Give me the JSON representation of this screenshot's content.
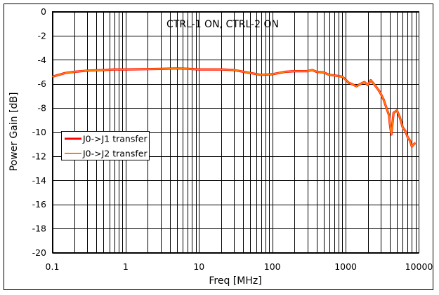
{
  "chart_data": {
    "type": "line",
    "title": "",
    "annotation": "CTRL-1 ON, CTRL-2 ON",
    "xlabel": "Freq [MHz]",
    "ylabel": "Power Gain [dB]",
    "xscale": "log",
    "xlim": [
      0.1,
      10000
    ],
    "ylim": [
      -20,
      0
    ],
    "x_ticks": [
      "0.1",
      "1",
      "10",
      "100",
      "1000",
      "10000"
    ],
    "y_ticks": [
      "0",
      "-2",
      "-4",
      "-6",
      "-8",
      "-10",
      "-12",
      "-14",
      "-16",
      "-18",
      "-20"
    ],
    "grid": true,
    "legend_position": "inside-left-middle",
    "series": [
      {
        "name": "J0->J1 transfer",
        "color": "#ff0000",
        "x": [
          0.1,
          0.15,
          0.2,
          0.3,
          0.5,
          0.7,
          1,
          2,
          3,
          5,
          7,
          10,
          20,
          30,
          50,
          70,
          100,
          150,
          200,
          300,
          350,
          400,
          500,
          600,
          700,
          800,
          900,
          1000,
          1100,
          1200,
          1400,
          1600,
          1800,
          2000,
          2200,
          2500,
          2800,
          3000,
          3300,
          3600,
          3900,
          4000,
          4200,
          4500,
          5000,
          5500,
          6000,
          6500,
          7000,
          7500,
          8000,
          8500,
          9000
        ],
        "y": [
          -5.4,
          -5.1,
          -5.0,
          -4.9,
          -4.85,
          -4.8,
          -4.8,
          -4.78,
          -4.76,
          -4.72,
          -4.75,
          -4.8,
          -4.8,
          -4.85,
          -5.1,
          -5.25,
          -5.2,
          -5.0,
          -4.95,
          -4.95,
          -4.85,
          -5.0,
          -5.05,
          -5.25,
          -5.3,
          -5.35,
          -5.4,
          -5.65,
          -5.9,
          -6.0,
          -6.2,
          -6.0,
          -5.85,
          -6.1,
          -5.7,
          -6.1,
          -6.5,
          -6.8,
          -7.3,
          -8.0,
          -8.6,
          -9.3,
          -10.2,
          -8.4,
          -8.2,
          -8.8,
          -9.6,
          -9.9,
          -10.4,
          -10.7,
          -11.2,
          -11.0,
          -10.9
        ]
      },
      {
        "name": "J0->J2 transfer",
        "color": "#ff7f0e",
        "x": [
          0.1,
          0.15,
          0.2,
          0.3,
          0.5,
          0.7,
          1,
          2,
          3,
          5,
          7,
          10,
          20,
          30,
          50,
          70,
          100,
          150,
          200,
          300,
          350,
          400,
          500,
          600,
          700,
          800,
          900,
          1000,
          1100,
          1200,
          1400,
          1600,
          1800,
          2000,
          2200,
          2500,
          2800,
          3000,
          3300,
          3600,
          3900,
          4000,
          4200,
          4500,
          5000,
          5500,
          6000,
          6500,
          7000,
          7500,
          8000,
          8500,
          9000
        ],
        "y": [
          -5.4,
          -5.1,
          -5.0,
          -4.9,
          -4.85,
          -4.8,
          -4.8,
          -4.78,
          -4.76,
          -4.72,
          -4.75,
          -4.8,
          -4.8,
          -4.85,
          -5.1,
          -5.25,
          -5.2,
          -5.0,
          -4.95,
          -4.95,
          -4.85,
          -5.0,
          -5.05,
          -5.25,
          -5.3,
          -5.35,
          -5.4,
          -5.65,
          -5.9,
          -6.0,
          -6.2,
          -6.0,
          -5.85,
          -6.1,
          -5.7,
          -6.1,
          -6.5,
          -6.8,
          -7.3,
          -8.0,
          -8.6,
          -9.3,
          -10.2,
          -8.4,
          -8.2,
          -8.8,
          -9.6,
          -9.9,
          -10.4,
          -10.7,
          -11.2,
          -11.0,
          -10.9
        ]
      }
    ]
  }
}
